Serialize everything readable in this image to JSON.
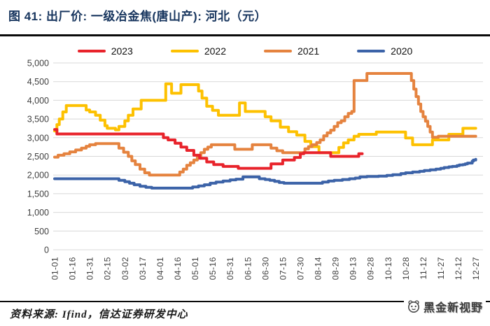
{
  "title": "图 41: 出厂价: 一级冶金焦(唐山产): 河北（元）",
  "source_note": "资料来源: Ifind，信达证券研发中心",
  "watermark": "黑金新视野",
  "legend": [
    {
      "label": "2023",
      "color": "#e8232b"
    },
    {
      "label": "2022",
      "color": "#fdc101"
    },
    {
      "label": "2021",
      "color": "#e5833f"
    },
    {
      "label": "2020",
      "color": "#3c63a8"
    }
  ],
  "colors": {
    "grid": "#d8d8d8",
    "axis_text": "#3f3f3f",
    "title_text": "#17355e"
  },
  "chart_data": {
    "type": "line",
    "step": true,
    "title": "出厂价: 一级冶金焦(唐山产): 河北（元）",
    "xlabel": "",
    "ylabel": "",
    "ylim": [
      0,
      5000
    ],
    "ytick_step": 500,
    "ytick_labels": [
      "0",
      "500",
      "1,000",
      "1,500",
      "2,000",
      "2,500",
      "3,000",
      "3,500",
      "4,000",
      "4,500",
      "5,000"
    ],
    "xtick_labels": [
      "01-01",
      "01-16",
      "01-31",
      "02-15",
      "03-02",
      "03-17",
      "04-01",
      "04-16",
      "05-01",
      "05-16",
      "05-31",
      "06-15",
      "06-30",
      "07-15",
      "07-30",
      "08-14",
      "08-29",
      "09-13",
      "09-28",
      "10-13",
      "10-28",
      "11-12",
      "11-27",
      "12-12",
      "12-27"
    ],
    "xtick_days": [
      1,
      16,
      31,
      46,
      61,
      76,
      91,
      106,
      121,
      136,
      151,
      166,
      181,
      196,
      211,
      226,
      241,
      256,
      271,
      286,
      301,
      316,
      331,
      346,
      361
    ],
    "grid": "horizontal",
    "legend_position": "top",
    "x_unit": "month-day (day of year)",
    "series": [
      {
        "name": "2020",
        "color": "#3c63a8",
        "points": [
          [
            1,
            1900
          ],
          [
            52,
            1900
          ],
          [
            56,
            1860
          ],
          [
            61,
            1820
          ],
          [
            65,
            1780
          ],
          [
            69,
            1740
          ],
          [
            74,
            1700
          ],
          [
            79,
            1670
          ],
          [
            84,
            1650
          ],
          [
            115,
            1650
          ],
          [
            119,
            1680
          ],
          [
            124,
            1710
          ],
          [
            129,
            1740
          ],
          [
            134,
            1780
          ],
          [
            139,
            1810
          ],
          [
            145,
            1840
          ],
          [
            151,
            1870
          ],
          [
            156,
            1890
          ],
          [
            162,
            1950
          ],
          [
            172,
            1950
          ],
          [
            176,
            1900
          ],
          [
            181,
            1880
          ],
          [
            185,
            1860
          ],
          [
            189,
            1830
          ],
          [
            193,
            1800
          ],
          [
            197,
            1780
          ],
          [
            226,
            1780
          ],
          [
            230,
            1810
          ],
          [
            235,
            1840
          ],
          [
            240,
            1860
          ],
          [
            247,
            1880
          ],
          [
            253,
            1900
          ],
          [
            258,
            1920
          ],
          [
            262,
            1950
          ],
          [
            268,
            1960
          ],
          [
            278,
            1970
          ],
          [
            285,
            1990
          ],
          [
            290,
            2010
          ],
          [
            297,
            2040
          ],
          [
            301,
            2060
          ],
          [
            307,
            2080
          ],
          [
            313,
            2100
          ],
          [
            317,
            2120
          ],
          [
            322,
            2140
          ],
          [
            327,
            2160
          ],
          [
            331,
            2180
          ],
          [
            334,
            2200
          ],
          [
            338,
            2220
          ],
          [
            341,
            2230
          ],
          [
            345,
            2250
          ],
          [
            347,
            2270
          ],
          [
            350,
            2280
          ],
          [
            352,
            2300
          ],
          [
            354,
            2320
          ],
          [
            356,
            2320
          ],
          [
            358,
            2370
          ],
          [
            359,
            2400
          ],
          [
            361,
            2420
          ]
        ]
      },
      {
        "name": "2022",
        "color": "#fdc101",
        "points": [
          [
            1,
            3180
          ],
          [
            3,
            3350
          ],
          [
            5,
            3500
          ],
          [
            8,
            3690
          ],
          [
            11,
            3860
          ],
          [
            24,
            3860
          ],
          [
            28,
            3740
          ],
          [
            31,
            3690
          ],
          [
            36,
            3600
          ],
          [
            40,
            3470
          ],
          [
            44,
            3320
          ],
          [
            46,
            3250
          ],
          [
            53,
            3210
          ],
          [
            56,
            3300
          ],
          [
            61,
            3450
          ],
          [
            64,
            3600
          ],
          [
            68,
            3770
          ],
          [
            75,
            4000
          ],
          [
            94,
            4000
          ],
          [
            96,
            4440
          ],
          [
            99,
            4440
          ],
          [
            101,
            4190
          ],
          [
            107,
            4190
          ],
          [
            109,
            4420
          ],
          [
            122,
            4420
          ],
          [
            124,
            4250
          ],
          [
            127,
            4060
          ],
          [
            131,
            3840
          ],
          [
            136,
            3730
          ],
          [
            141,
            3600
          ],
          [
            157,
            3600
          ],
          [
            159,
            3930
          ],
          [
            162,
            3930
          ],
          [
            164,
            3700
          ],
          [
            178,
            3700
          ],
          [
            181,
            3560
          ],
          [
            186,
            3450
          ],
          [
            194,
            3280
          ],
          [
            201,
            3160
          ],
          [
            208,
            3070
          ],
          [
            215,
            2900
          ],
          [
            220,
            2760
          ],
          [
            227,
            2600
          ],
          [
            240,
            2600
          ],
          [
            244,
            2740
          ],
          [
            248,
            2860
          ],
          [
            252,
            2940
          ],
          [
            257,
            3040
          ],
          [
            261,
            3090
          ],
          [
            272,
            3090
          ],
          [
            276,
            3150
          ],
          [
            299,
            3150
          ],
          [
            301,
            2990
          ],
          [
            307,
            2810
          ],
          [
            322,
            2810
          ],
          [
            324,
            2940
          ],
          [
            336,
            2940
          ],
          [
            338,
            3090
          ],
          [
            348,
            3090
          ],
          [
            350,
            3250
          ],
          [
            361,
            3250
          ]
        ]
      },
      {
        "name": "2021",
        "color": "#e5833f",
        "points": [
          [
            1,
            2480
          ],
          [
            4,
            2530
          ],
          [
            9,
            2570
          ],
          [
            14,
            2620
          ],
          [
            19,
            2670
          ],
          [
            24,
            2720
          ],
          [
            28,
            2770
          ],
          [
            31,
            2810
          ],
          [
            36,
            2840
          ],
          [
            53,
            2840
          ],
          [
            56,
            2720
          ],
          [
            60,
            2610
          ],
          [
            64,
            2500
          ],
          [
            67,
            2380
          ],
          [
            70,
            2280
          ],
          [
            74,
            2160
          ],
          [
            78,
            2060
          ],
          [
            82,
            2000
          ],
          [
            104,
            2000
          ],
          [
            108,
            2080
          ],
          [
            111,
            2160
          ],
          [
            114,
            2260
          ],
          [
            117,
            2330
          ],
          [
            120,
            2400
          ],
          [
            123,
            2500
          ],
          [
            126,
            2600
          ],
          [
            129,
            2690
          ],
          [
            132,
            2750
          ],
          [
            135,
            2810
          ],
          [
            152,
            2810
          ],
          [
            155,
            2690
          ],
          [
            167,
            2690
          ],
          [
            170,
            2810
          ],
          [
            182,
            2810
          ],
          [
            186,
            2720
          ],
          [
            191,
            2650
          ],
          [
            196,
            2600
          ],
          [
            212,
            2600
          ],
          [
            215,
            2700
          ],
          [
            218,
            2760
          ],
          [
            221,
            2810
          ],
          [
            225,
            2870
          ],
          [
            228,
            2940
          ],
          [
            231,
            3050
          ],
          [
            234,
            3130
          ],
          [
            237,
            3200
          ],
          [
            240,
            3300
          ],
          [
            243,
            3400
          ],
          [
            246,
            3450
          ],
          [
            249,
            3560
          ],
          [
            252,
            3650
          ],
          [
            255,
            3700
          ],
          [
            257,
            4530
          ],
          [
            266,
            4530
          ],
          [
            268,
            4720
          ],
          [
            303,
            4720
          ],
          [
            306,
            4530
          ],
          [
            308,
            4300
          ],
          [
            310,
            4100
          ],
          [
            312,
            3900
          ],
          [
            314,
            3700
          ],
          [
            316,
            3560
          ],
          [
            318,
            3440
          ],
          [
            320,
            3300
          ],
          [
            322,
            3150
          ],
          [
            324,
            3010
          ],
          [
            329,
            3040
          ],
          [
            361,
            3040
          ]
        ]
      },
      {
        "name": "2023",
        "color": "#e8232b",
        "points": [
          [
            1,
            3220
          ],
          [
            3,
            3100
          ],
          [
            90,
            3100
          ],
          [
            94,
            3000
          ],
          [
            98,
            2940
          ],
          [
            104,
            2850
          ],
          [
            109,
            2750
          ],
          [
            114,
            2660
          ],
          [
            120,
            2530
          ],
          [
            125,
            2450
          ],
          [
            131,
            2350
          ],
          [
            137,
            2280
          ],
          [
            145,
            2230
          ],
          [
            158,
            2180
          ],
          [
            183,
            2180
          ],
          [
            186,
            2300
          ],
          [
            196,
            2400
          ],
          [
            206,
            2470
          ],
          [
            211,
            2570
          ],
          [
            214,
            2600
          ],
          [
            234,
            2600
          ],
          [
            237,
            2500
          ],
          [
            258,
            2500
          ],
          [
            261,
            2570
          ],
          [
            264,
            2570
          ]
        ]
      }
    ]
  }
}
